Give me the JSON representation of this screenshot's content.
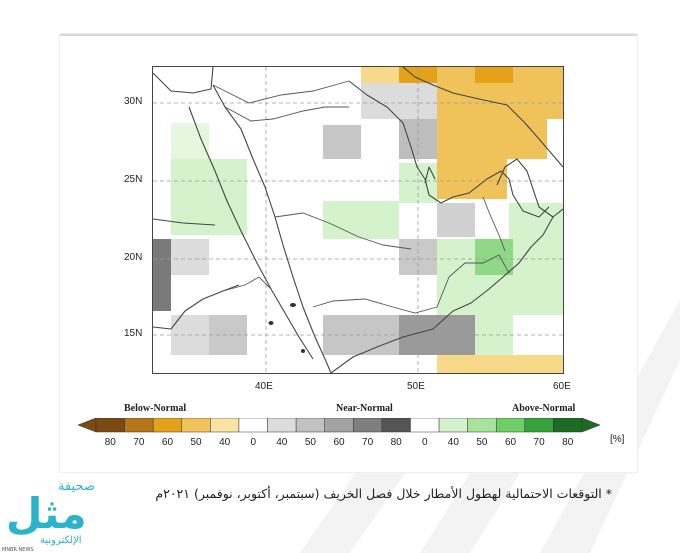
{
  "map": {
    "lat_labels": [
      "30N",
      "25N",
      "20N",
      "15N"
    ],
    "lon_labels": [
      "40E",
      "50E",
      "60E"
    ]
  },
  "legend": {
    "below_label": "Below-Normal",
    "near_label": "Near-Normal",
    "above_label": "Above-Normal",
    "unit": "[%]",
    "below": {
      "labels": [
        "80",
        "70",
        "60",
        "50",
        "40"
      ],
      "colors": [
        "#7a4a12",
        "#b4751b",
        "#e3a21a",
        "#f0c35a",
        "#f8e2a6"
      ]
    },
    "near": {
      "labels": [
        "40",
        "50",
        "60",
        "70",
        "80"
      ],
      "colors": [
        "#dcdcdc",
        "#c2c2c2",
        "#a3a3a3",
        "#7f7f7f",
        "#555555"
      ]
    },
    "above": {
      "labels": [
        "40",
        "50",
        "60",
        "70",
        "80"
      ],
      "colors": [
        "#d4f2cc",
        "#a8e39b",
        "#6fcf67",
        "#36a33a",
        "#1b6b25"
      ]
    },
    "zero_labels": [
      "0",
      "0"
    ]
  },
  "caption": "* التوقعات الاحتمالية لهطول الأمطار خلال فصل الخريف (سبتمبر، أكتوبر، نوفمبر) ٢٠٢١م",
  "watermark": {
    "arabic_top": "صحيفة",
    "arabic_main": "مثل",
    "arabic_bottom": "الإلكترونية",
    "latin": "MNBR NEWS"
  }
}
